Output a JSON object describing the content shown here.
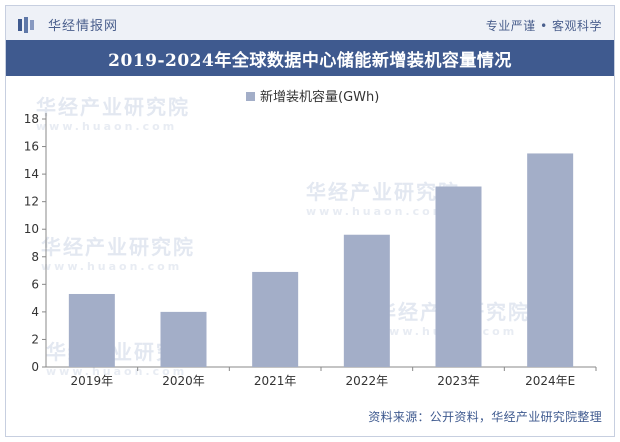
{
  "header": {
    "brand": "华经情报网",
    "tagline": "专业严谨 • 客观科学"
  },
  "title": "2019-2024年全球数据中心储能新增装机容量情况",
  "source": "资料来源：公开资料，华经产业研究院整理",
  "watermark": {
    "text": "华经产业研究院",
    "url": "www.huaon.com"
  },
  "colors": {
    "bar": "#a3aec8",
    "title_bg": "#3f5a8f",
    "axis": "#888888"
  },
  "chart_data": {
    "type": "bar",
    "categories": [
      "2019年",
      "2020年",
      "2021年",
      "2022年",
      "2023年",
      "2024年E"
    ],
    "series": [
      {
        "name": "新增装机容量(GWh)",
        "values": [
          5.3,
          4.0,
          6.9,
          9.6,
          13.1,
          15.5
        ]
      }
    ],
    "ylim": [
      0,
      18
    ],
    "yticks": [
      0,
      2,
      4,
      6,
      8,
      10,
      12,
      14,
      16,
      18
    ],
    "legend_position": "top-center",
    "grid": false
  }
}
